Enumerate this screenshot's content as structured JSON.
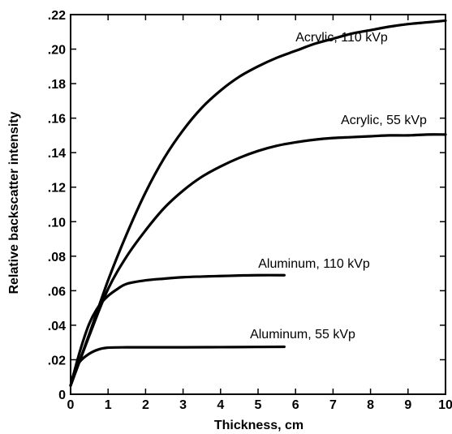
{
  "chart_data": {
    "type": "line",
    "title": "",
    "xlabel": "Thickness, cm",
    "ylabel": "Relative backscatter intensity",
    "xlim": [
      0,
      10
    ],
    "ylim": [
      0,
      0.22
    ],
    "xticks": [
      0,
      1,
      2,
      3,
      4,
      5,
      6,
      7,
      8,
      9,
      10
    ],
    "xtick_labels": [
      "0",
      "1",
      "2",
      "3",
      "4",
      "5",
      "6",
      "7",
      "8",
      "9",
      "10"
    ],
    "yticks": [
      0,
      0.02,
      0.04,
      0.06,
      0.08,
      0.1,
      0.12,
      0.14,
      0.16,
      0.18,
      0.2,
      0.22
    ],
    "ytick_labels": [
      "0",
      ".02",
      ".04",
      ".06",
      ".08",
      ".10",
      ".12",
      ".14",
      ".16",
      ".18",
      ".20",
      ".22"
    ],
    "grid": false,
    "legend": "none",
    "color": "#000000",
    "series": [
      {
        "name": "Acrylic, 110 kVp",
        "x": [
          0,
          0.5,
          1,
          1.5,
          2,
          2.5,
          3,
          3.5,
          4,
          4.5,
          5,
          5.5,
          6,
          6.5,
          7,
          7.5,
          8,
          8.5,
          9,
          9.5,
          10
        ],
        "y": [
          0.005,
          0.035,
          0.066,
          0.093,
          0.117,
          0.137,
          0.153,
          0.166,
          0.176,
          0.184,
          0.19,
          0.195,
          0.199,
          0.203,
          0.206,
          0.209,
          0.211,
          0.213,
          0.2145,
          0.2155,
          0.2165
        ]
      },
      {
        "name": "Acrylic, 55 kVp",
        "x": [
          0,
          0.5,
          1,
          1.5,
          2,
          2.5,
          3,
          3.5,
          4,
          4.5,
          5,
          5.5,
          6,
          6.5,
          7,
          7.5,
          8,
          8.5,
          9,
          9.5,
          10
        ],
        "y": [
          0.005,
          0.034,
          0.061,
          0.08,
          0.095,
          0.108,
          0.118,
          0.126,
          0.132,
          0.137,
          0.141,
          0.144,
          0.146,
          0.1475,
          0.1485,
          0.149,
          0.1495,
          0.15,
          0.15,
          0.1505,
          0.1505
        ]
      },
      {
        "name": "Aluminum, 110 kVp",
        "x": [
          0,
          0.25,
          0.5,
          0.75,
          1,
          1.25,
          1.5,
          2,
          2.5,
          3,
          3.5,
          4,
          4.5,
          5,
          5.7
        ],
        "y": [
          0.005,
          0.025,
          0.041,
          0.051,
          0.057,
          0.061,
          0.064,
          0.066,
          0.067,
          0.0678,
          0.0682,
          0.0685,
          0.0688,
          0.069,
          0.069
        ]
      },
      {
        "name": "Aluminum, 55 kVp",
        "x": [
          0,
          0.1,
          0.25,
          0.5,
          0.75,
          1,
          1.5,
          2,
          3,
          4,
          5,
          5.7
        ],
        "y": [
          0.005,
          0.013,
          0.019,
          0.0235,
          0.026,
          0.027,
          0.0272,
          0.0272,
          0.0272,
          0.0273,
          0.0274,
          0.0275
        ]
      }
    ]
  }
}
